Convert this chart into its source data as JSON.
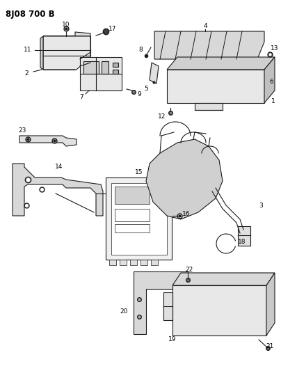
{
  "title": "8J08 700 B",
  "background_color": "#ffffff",
  "line_color": "#1a1a1a",
  "text_color": "#000000",
  "title_fontsize": 8.5,
  "label_fontsize": 6.5,
  "figsize": [
    4.04,
    5.33
  ],
  "dpi": 100
}
